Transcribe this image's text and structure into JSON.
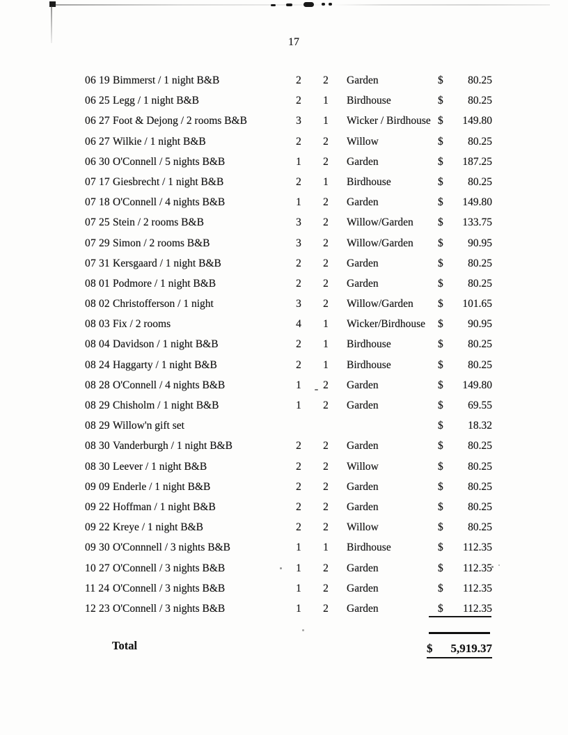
{
  "page": {
    "number": "17"
  },
  "table": {
    "rows": [
      {
        "date": "06 19",
        "description": "Bimmerst / 1 night B&B",
        "num1": "2",
        "num2": "2",
        "room": "Garden",
        "currency": "$",
        "amount": "80.25"
      },
      {
        "date": "06 25",
        "description": "Legg / 1 night B&B",
        "num1": "2",
        "num2": "1",
        "room": "Birdhouse",
        "currency": "$",
        "amount": "80.25"
      },
      {
        "date": "06 27",
        "description": "Foot & Dejong / 2 rooms B&B",
        "num1": "3",
        "num2": "1",
        "room": "Wicker / Birdhouse",
        "currency": "$",
        "amount": "149.80"
      },
      {
        "date": "06 27",
        "description": "Wilkie / 1 night B&B",
        "num1": "2",
        "num2": "2",
        "room": "Willow",
        "currency": "$",
        "amount": "80.25"
      },
      {
        "date": "06 30",
        "description": "O'Connell / 5 nights B&B",
        "num1": "1",
        "num2": "2",
        "room": "Garden",
        "currency": "$",
        "amount": "187.25"
      },
      {
        "date": "07 17",
        "description": "Giesbrecht / 1 night B&B",
        "num1": "2",
        "num2": "1",
        "room": "Birdhouse",
        "currency": "$",
        "amount": "80.25"
      },
      {
        "date": "07 18",
        "description": "O'Connell / 4 nights B&B",
        "num1": "1",
        "num2": "2",
        "room": "Garden",
        "currency": "$",
        "amount": "149.80"
      },
      {
        "date": "07 25",
        "description": "Stein / 2 rooms B&B",
        "num1": "3",
        "num2": "2",
        "room": "Willow/Garden",
        "currency": "$",
        "amount": "133.75"
      },
      {
        "date": "07 29",
        "description": "Simon / 2 rooms B&B",
        "num1": "3",
        "num2": "2",
        "room": "Willow/Garden",
        "currency": "$",
        "amount": "90.95"
      },
      {
        "date": "07 31",
        "description": "Kersgaard / 1 night B&B",
        "num1": "2",
        "num2": "2",
        "room": "Garden",
        "currency": "$",
        "amount": "80.25"
      },
      {
        "date": "08 01",
        "description": "Podmore / 1 night B&B",
        "num1": "2",
        "num2": "2",
        "room": "Garden",
        "currency": "$",
        "amount": "80.25"
      },
      {
        "date": "08 02",
        "description": "Christofferson / 1 night",
        "num1": "3",
        "num2": "2",
        "room": "Willow/Garden",
        "currency": "$",
        "amount": "101.65"
      },
      {
        "date": "08 03",
        "description": "Fix / 2 rooms",
        "num1": "4",
        "num2": "1",
        "room": "Wicker/Birdhouse",
        "currency": "$",
        "amount": "90.95"
      },
      {
        "date": "08 04",
        "description": "Davidson / 1 night B&B",
        "num1": "2",
        "num2": "1",
        "room": "Birdhouse",
        "currency": "$",
        "amount": "80.25"
      },
      {
        "date": "08 24",
        "description": "Haggarty / 1 night B&B",
        "num1": "2",
        "num2": "1",
        "room": "Birdhouse",
        "currency": "$",
        "amount": "80.25"
      },
      {
        "date": "08 28",
        "description": "O'Connell / 4 nights B&B",
        "num1": "1",
        "num2": "2",
        "room": "Garden",
        "currency": "$",
        "amount": "149.80"
      },
      {
        "date": "08 29",
        "description": "Chisholm / 1 night B&B",
        "num1": "1",
        "num2": "2",
        "room": "Garden",
        "currency": "$",
        "amount": "69.55"
      },
      {
        "date": "08 29",
        "description": "Willow'n gift set",
        "num1": "",
        "num2": "",
        "room": "",
        "currency": "$",
        "amount": "18.32"
      },
      {
        "date": "08 30",
        "description": "Vanderburgh / 1 night B&B",
        "num1": "2",
        "num2": "2",
        "room": "Garden",
        "currency": "$",
        "amount": "80.25"
      },
      {
        "date": "08 30",
        "description": "Leever / 1 night B&B",
        "num1": "2",
        "num2": "2",
        "room": "Willow",
        "currency": "$",
        "amount": "80.25"
      },
      {
        "date": "09 09",
        "description": "Enderle / 1 night B&B",
        "num1": "2",
        "num2": "2",
        "room": "Garden",
        "currency": "$",
        "amount": "80.25"
      },
      {
        "date": "09 22",
        "description": "Hoffman / 1 night B&B",
        "num1": "2",
        "num2": "2",
        "room": "Garden",
        "currency": "$",
        "amount": "80.25"
      },
      {
        "date": "09 22",
        "description": "Kreye / 1 night B&B",
        "num1": "2",
        "num2": "2",
        "room": "Willow",
        "currency": "$",
        "amount": "80.25"
      },
      {
        "date": "09 30",
        "description": "O'Connnell / 3 nights B&B",
        "num1": "1",
        "num2": "1",
        "room": "Birdhouse",
        "currency": "$",
        "amount": "112.35"
      },
      {
        "date": "10 27",
        "description": "O'Connell / 3 nights B&B",
        "num1": "1",
        "num2": "2",
        "room": "Garden",
        "currency": "$",
        "amount": "112.35"
      },
      {
        "date": "11 24",
        "description": "O'Connell / 3 nights B&B",
        "num1": "1",
        "num2": "2",
        "room": "Garden",
        "currency": "$",
        "amount": "112.35"
      },
      {
        "date": "12 23",
        "description": "O'Connell / 3 nights B&B",
        "num1": "1",
        "num2": "2",
        "room": "Garden",
        "currency": "$",
        "amount": "112.35"
      }
    ],
    "total": {
      "label": "Total",
      "currency": "$",
      "amount": "5,919.37"
    }
  }
}
